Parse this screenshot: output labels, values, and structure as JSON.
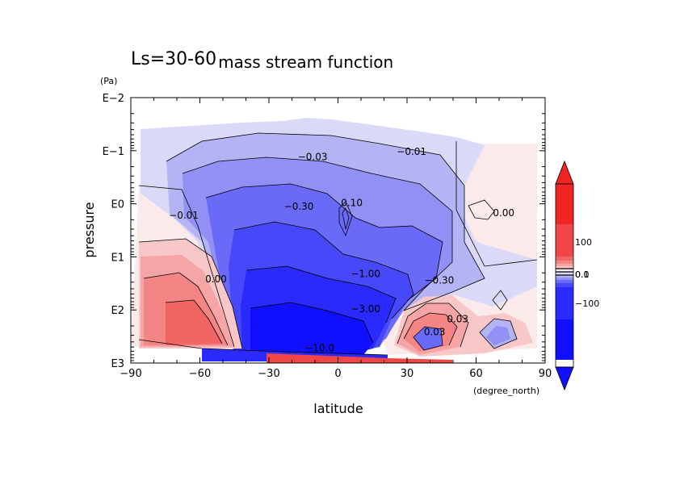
{
  "chart_data": {
    "type": "contour",
    "title": "Ls=30-60",
    "subtitle": "mass stream function",
    "xlabel": "latitude",
    "xunit": "(degree_north)",
    "ylabel": "pressure",
    "yunit": "(Pa)",
    "xlim": [
      -90,
      90
    ],
    "x_ticks": [
      -90,
      -60,
      -30,
      0,
      30,
      60,
      90
    ],
    "x_tick_labels": [
      "−90",
      "−60",
      "−30",
      "0",
      "30",
      "60",
      "90"
    ],
    "y_scale": "log",
    "ylim_pa": [
      1000,
      0.01
    ],
    "y_ticks_pa": [
      0.01,
      0.1,
      1,
      10,
      100,
      1000
    ],
    "y_tick_labels": [
      "E−2",
      "E−1",
      "E0",
      "E1",
      "E2",
      "E3"
    ],
    "grid": false,
    "colorbar": {
      "position": "right",
      "tick_labels": [
        "100",
        "0.1",
        "0.0",
        "−100"
      ],
      "colors_negative": [
        "#1010ff",
        "#2a2aff",
        "#4848fb",
        "#6a6af8",
        "#9090f5",
        "#b4b4f5",
        "#dadaf8"
      ],
      "colors_positive": [
        "#fbeaea",
        "#f8c8c8",
        "#f5a5a5",
        "#f38585",
        "#f26565",
        "#f24545",
        "#f22525"
      ]
    },
    "contour_labels": [
      {
        "text": "−0.01",
        "lat": 32,
        "p": 0.12
      },
      {
        "text": "−0.03",
        "lat": -11,
        "p": 0.15
      },
      {
        "text": "−0.30",
        "lat": -17,
        "p": 1.3
      },
      {
        "text": "0.10",
        "lat": 6,
        "p": 1.1
      },
      {
        "text": "0.00",
        "lat": 72,
        "p": 1.7
      },
      {
        "text": "−0.01",
        "lat": -67,
        "p": 1.9
      },
      {
        "text": "−1.00",
        "lat": 12,
        "p": 24
      },
      {
        "text": "−0.30",
        "lat": 44,
        "p": 32
      },
      {
        "text": "−3.00",
        "lat": 12,
        "p": 110
      },
      {
        "text": "−10.0",
        "lat": -8,
        "p": 600
      },
      {
        "text": "0.03",
        "lat": 52,
        "p": 170
      },
      {
        "text": "0.03",
        "lat": 42,
        "p": 300
      },
      {
        "text": "0.00",
        "lat": -53,
        "p": 30
      }
    ]
  }
}
